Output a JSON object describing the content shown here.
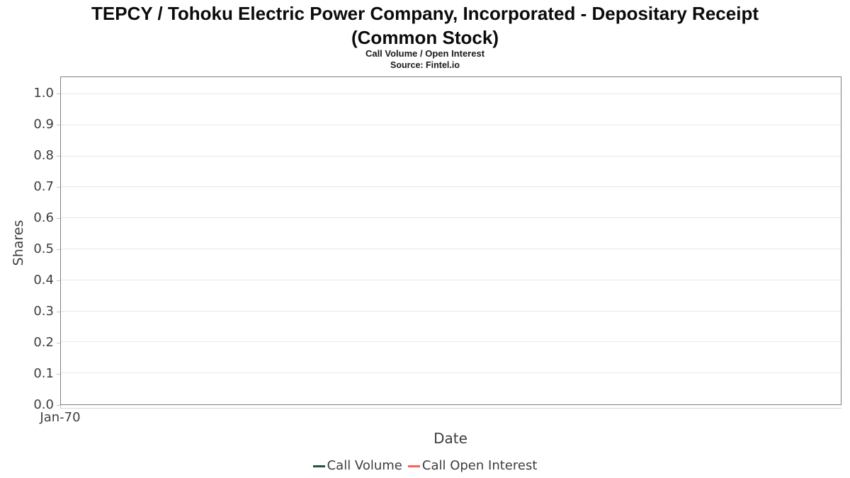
{
  "header": {
    "title_line1": "TEPCY / Tohoku Electric Power Company, Incorporated - Depositary Receipt",
    "title_line2": "(Common Stock)",
    "subtitle": "Call Volume / Open Interest",
    "source": "Source: Fintel.io"
  },
  "chart_data": {
    "type": "line",
    "title": "TEPCY / Tohoku Electric Power Company, Incorporated - Depositary Receipt (Common Stock)",
    "subtitle": "Call Volume / Open Interest",
    "source": "Source: Fintel.io",
    "xlabel": "Date",
    "ylabel": "Shares",
    "ylim": [
      0,
      1.055
    ],
    "y_ticks": [
      0.0,
      0.1,
      0.2,
      0.3,
      0.4,
      0.5,
      0.6,
      0.7,
      0.8,
      0.9,
      1.0
    ],
    "y_tick_labels": [
      "0.0",
      "0.1",
      "0.2",
      "0.3",
      "0.4",
      "0.5",
      "0.6",
      "0.7",
      "0.8",
      "0.9",
      "1.0"
    ],
    "x_tick_labels": [
      "Jan-70"
    ],
    "grid": "horizontal",
    "legend_position": "bottom",
    "series": [
      {
        "name": "Call Volume",
        "color": "#245434",
        "x": [],
        "values": []
      },
      {
        "name": "Call Open Interest",
        "color": "#fa5f5f",
        "x": [],
        "values": []
      }
    ]
  },
  "colors": {
    "plot_border": "#7f7f7f",
    "gridline": "#e8e8e8",
    "tick": "#c4c4c4",
    "axis_text": "#3d3d3d"
  }
}
